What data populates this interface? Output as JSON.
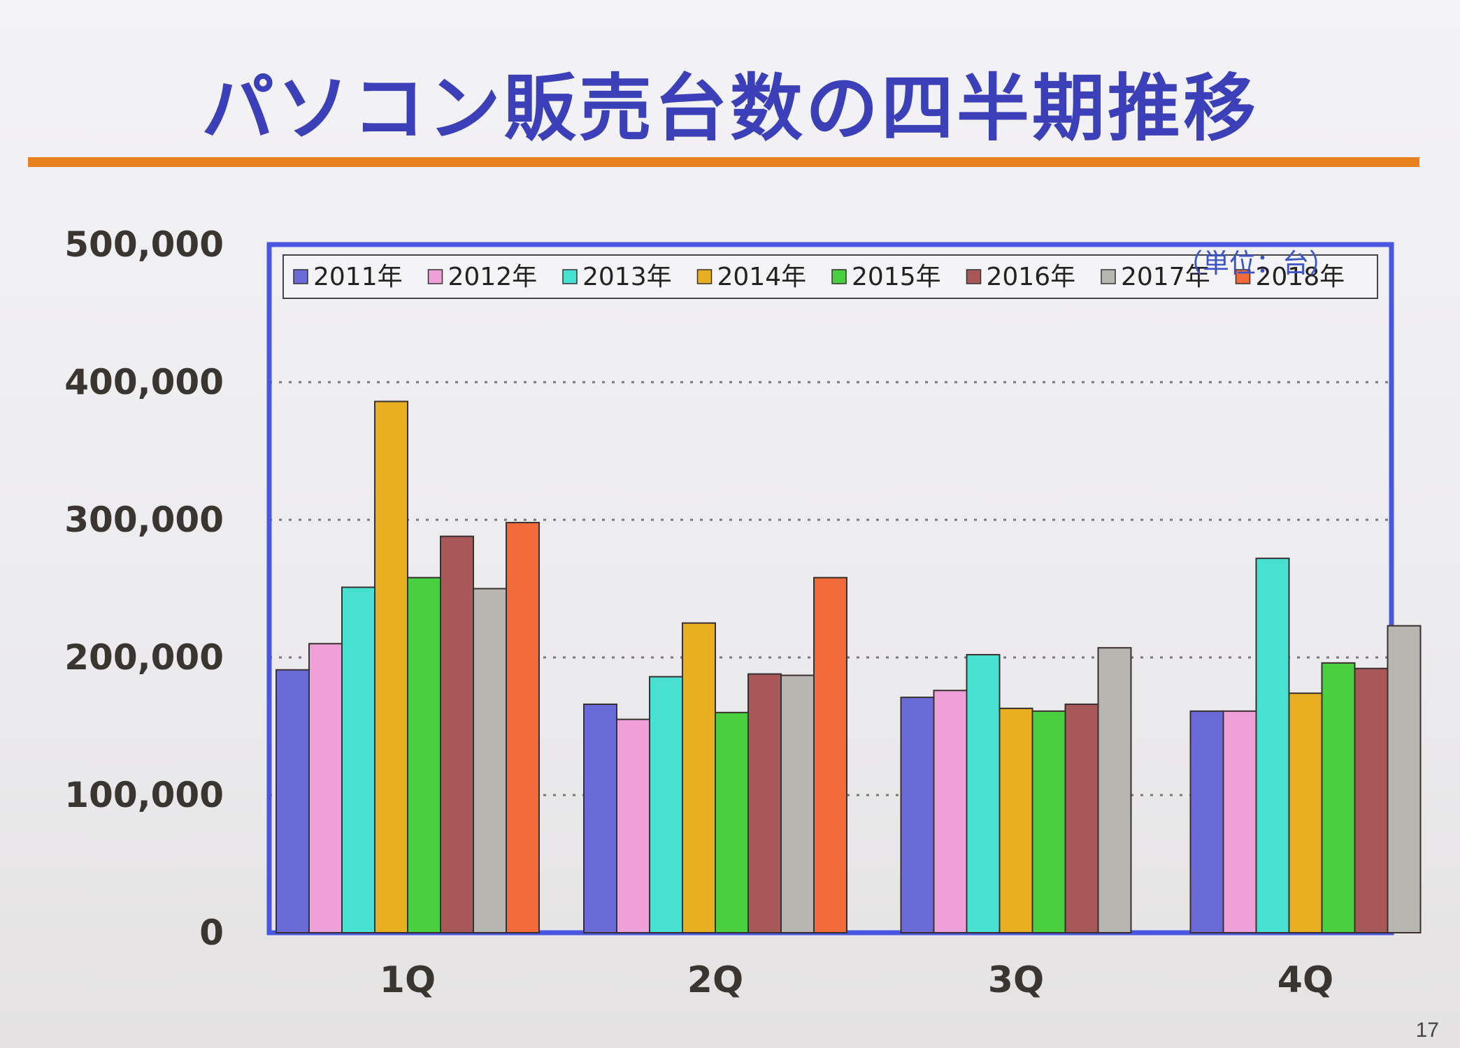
{
  "slide": {
    "title": "パソコン販売台数の四半期推移",
    "page_number": "17",
    "accent_color": "#e8801e",
    "title_color": "#3b3fb8"
  },
  "chart_data": {
    "type": "bar",
    "title": "パソコン販売台数の四半期推移",
    "unit_label": "（単位：台）",
    "xlabel": "",
    "ylabel": "",
    "categories": [
      "1Q",
      "2Q",
      "3Q",
      "4Q"
    ],
    "ylim": [
      0,
      500000
    ],
    "yticks": [
      0,
      100000,
      200000,
      300000,
      400000,
      500000
    ],
    "ytick_labels": [
      "0",
      "100,000",
      "200,000",
      "300,000",
      "400,000",
      "500,000"
    ],
    "grid": "dotted horizontal",
    "legend_position": "top",
    "series": [
      {
        "name": "2011年",
        "color": "#6b6bd8",
        "values": [
          191000,
          166000,
          171000,
          161000
        ]
      },
      {
        "name": "2012年",
        "color": "#f0a0d8",
        "values": [
          210000,
          155000,
          176000,
          161000
        ]
      },
      {
        "name": "2013年",
        "color": "#48e0d0",
        "values": [
          251000,
          186000,
          202000,
          272000
        ]
      },
      {
        "name": "2014年",
        "color": "#e8b020",
        "values": [
          386000,
          225000,
          163000,
          174000
        ]
      },
      {
        "name": "2015年",
        "color": "#48d040",
        "values": [
          258000,
          160000,
          161000,
          196000
        ]
      },
      {
        "name": "2016年",
        "color": "#a85858",
        "values": [
          288000,
          188000,
          166000,
          192000
        ]
      },
      {
        "name": "2017年",
        "color": "#b8b6b0",
        "values": [
          250000,
          187000,
          207000,
          223000
        ]
      },
      {
        "name": "2018年",
        "color": "#f06a3a",
        "values": [
          298000,
          258000,
          null,
          null
        ]
      }
    ]
  }
}
